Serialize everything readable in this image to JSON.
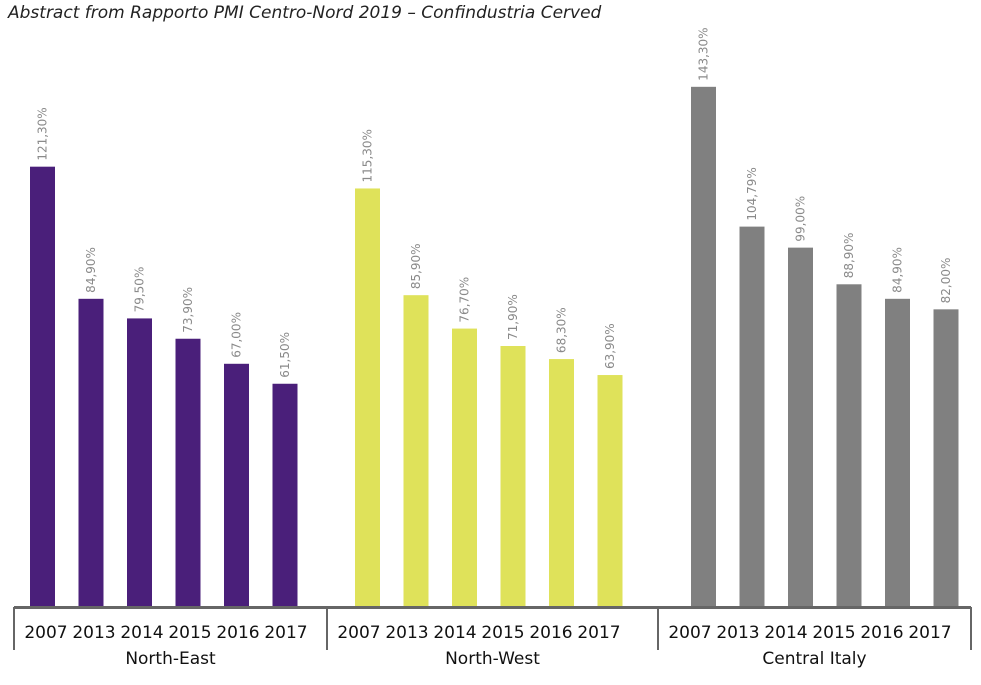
{
  "chart_data": {
    "type": "bar",
    "title": "Abstract from Rapporto PMI Centro-Nord 2019 – Confindustria Cerved",
    "xlabel": "",
    "ylabel": "",
    "ylim": [
      0,
      145
    ],
    "grid": false,
    "legend": "none",
    "groups": [
      {
        "name": "North-East",
        "color": "#4a1f7a",
        "categories": [
          "2007",
          "2013",
          "2014",
          "2015",
          "2016",
          "2017"
        ],
        "values": [
          121.3,
          84.9,
          79.5,
          73.9,
          67.0,
          61.5
        ],
        "labels": [
          "121,30%",
          "84,90%",
          "79,50%",
          "73,90%",
          "67,00%",
          "61,50%"
        ]
      },
      {
        "name": "North-West",
        "color": "#dfe25a",
        "categories": [
          "2007",
          "2013",
          "2014",
          "2015",
          "2016",
          "2017"
        ],
        "values": [
          115.3,
          85.9,
          76.7,
          71.9,
          68.3,
          63.9
        ],
        "labels": [
          "115,30%",
          "85,90%",
          "76,70%",
          "71,90%",
          "68,30%",
          "63,90%"
        ]
      },
      {
        "name": "Central Italy",
        "color": "#808080",
        "categories": [
          "2007",
          "2013",
          "2014",
          "2015",
          "2016",
          "2017"
        ],
        "values": [
          143.3,
          104.79,
          99.0,
          88.9,
          84.9,
          82.0
        ],
        "labels": [
          "143,30%",
          "104,79%",
          "99,00%",
          "88,90%",
          "84,90%",
          "82,00%"
        ]
      }
    ]
  }
}
